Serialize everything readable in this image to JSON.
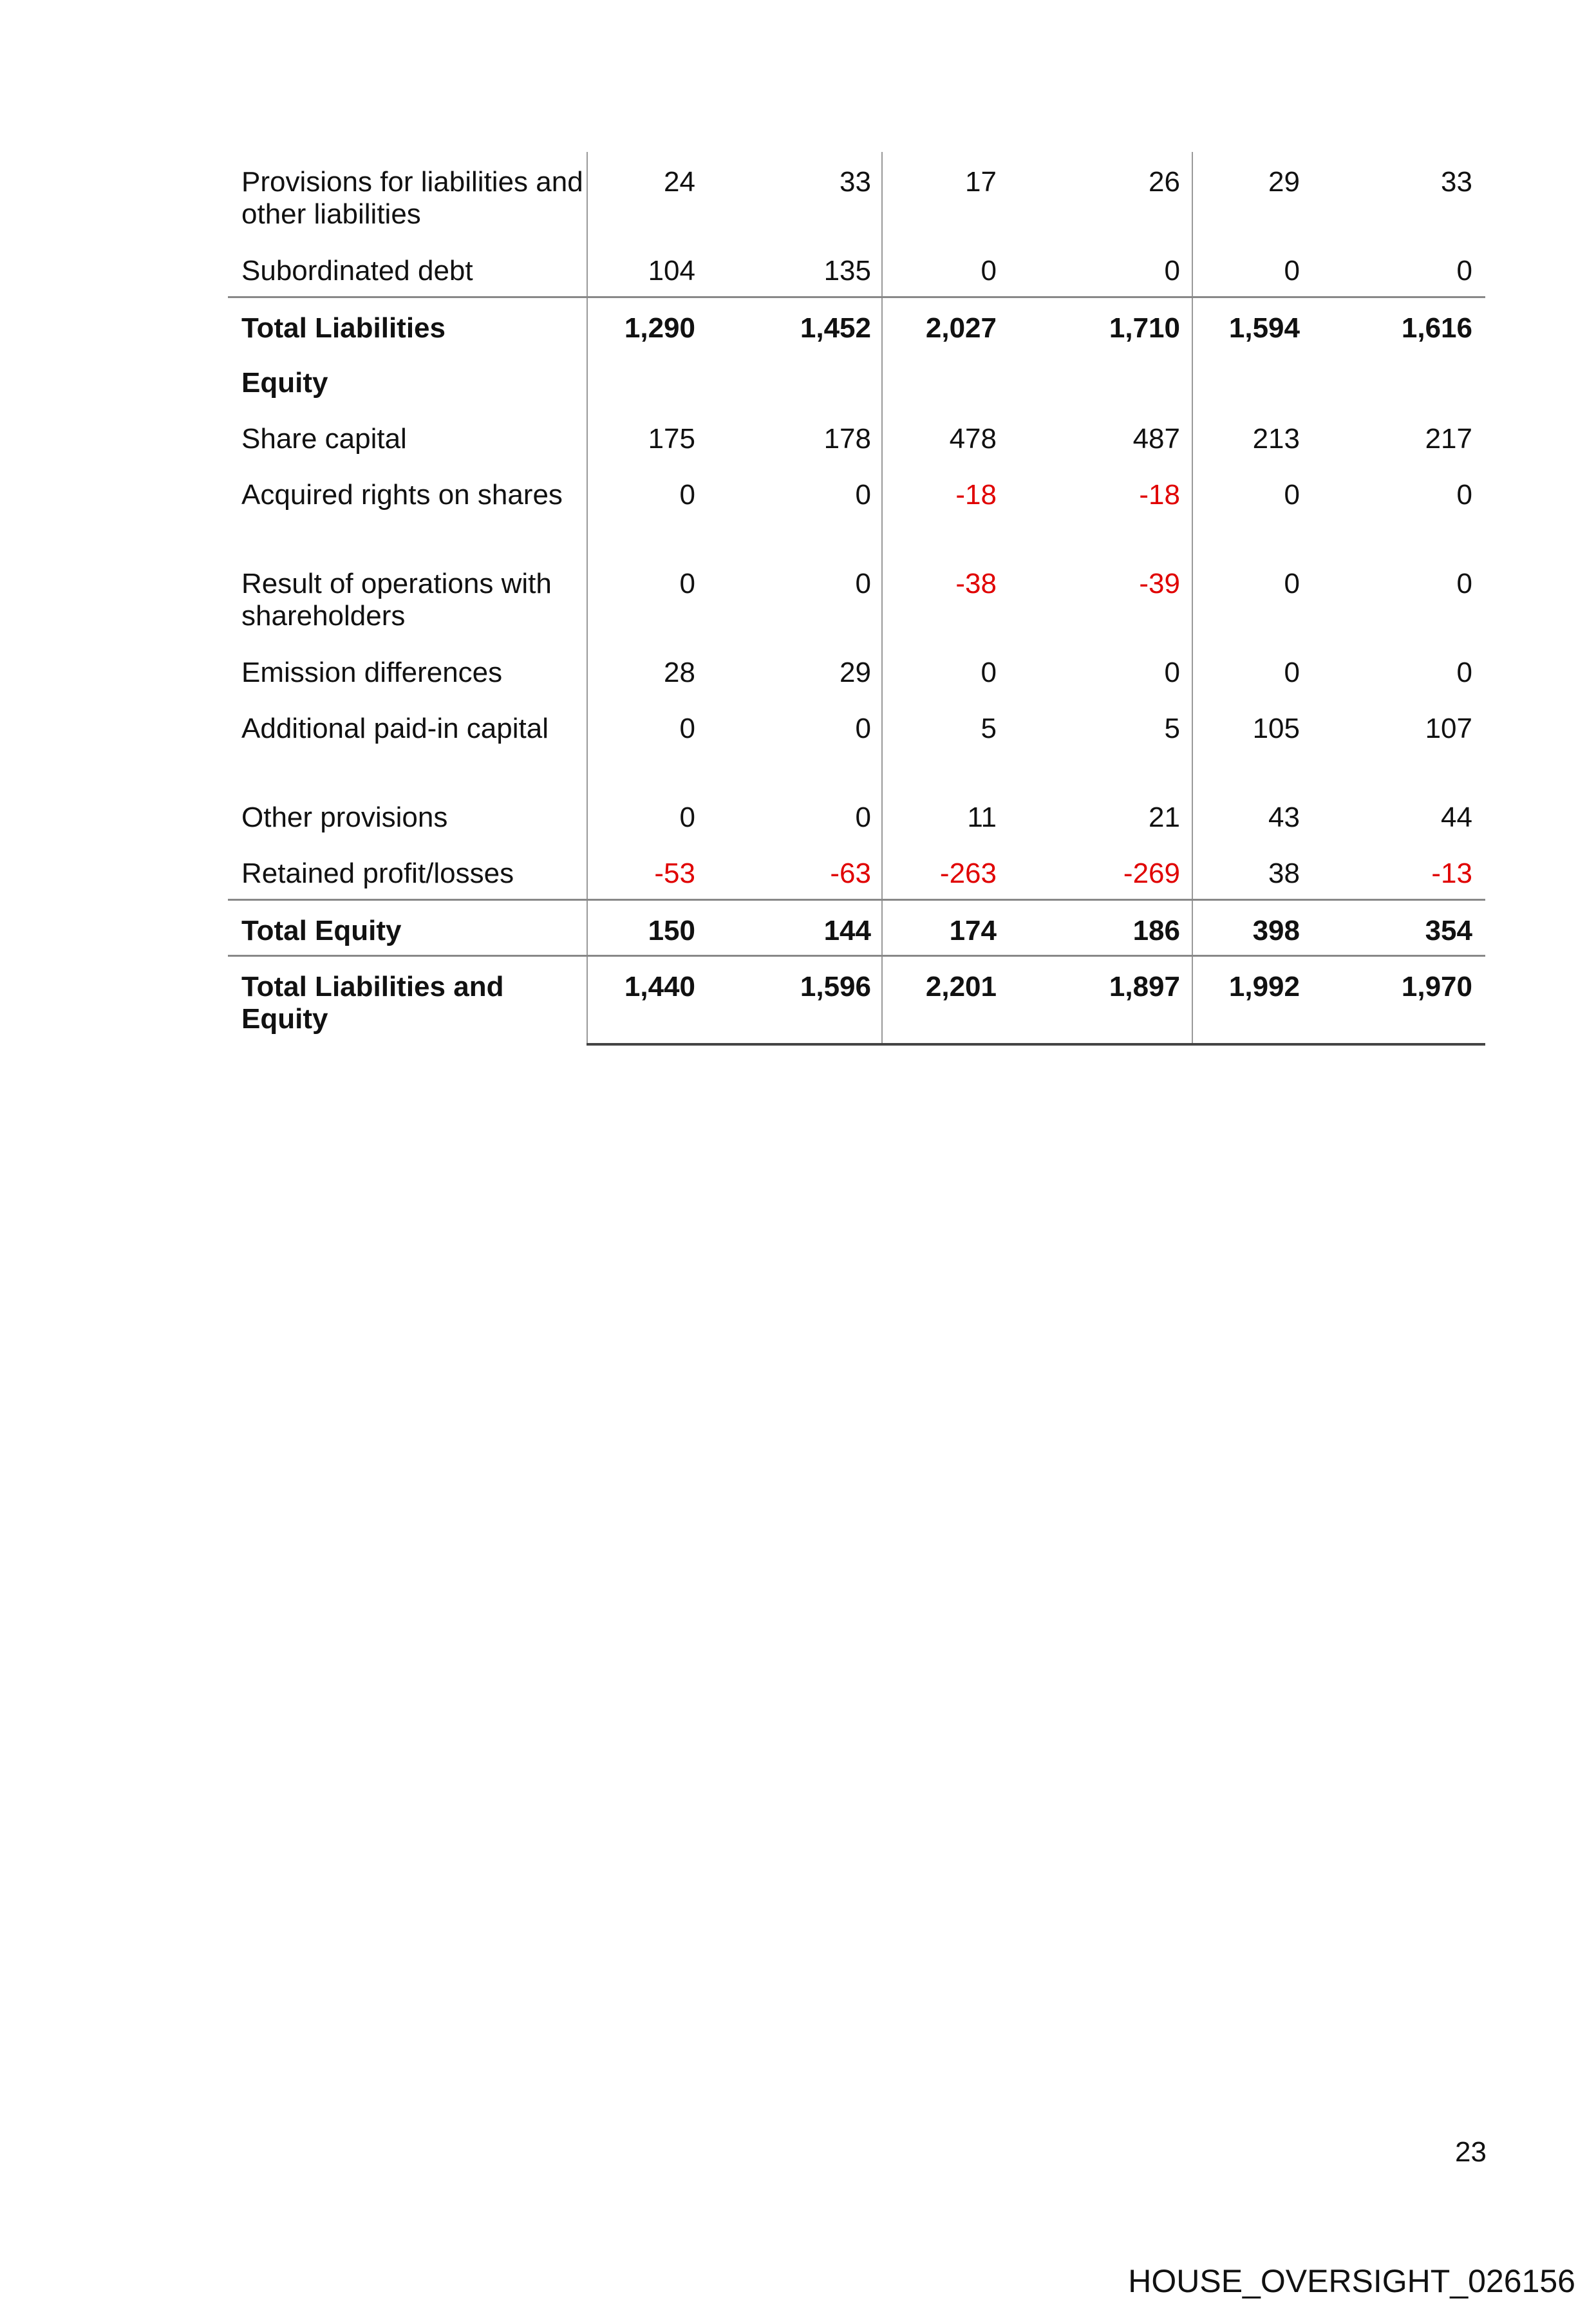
{
  "table": {
    "rows": [
      {
        "label": "Provisions for liabilities and other liabilities",
        "values": [
          "24",
          "33",
          "17",
          "26",
          "29",
          "33"
        ]
      },
      {
        "label": "Subordinated debt",
        "values": [
          "104",
          "135",
          "0",
          "0",
          "0",
          "0"
        ]
      },
      {
        "label": "Total Liabilities",
        "values": [
          "1,290",
          "1,452",
          "2,027",
          "1,710",
          "1,594",
          "1,616"
        ]
      },
      {
        "label": "Equity",
        "values": [
          "",
          "",
          "",
          "",
          "",
          ""
        ]
      },
      {
        "label": "Share capital",
        "values": [
          "175",
          "178",
          "478",
          "487",
          "213",
          "217"
        ]
      },
      {
        "label": "Acquired rights on shares",
        "values": [
          "0",
          "0",
          "-18",
          "-18",
          "0",
          "0"
        ]
      },
      {
        "label": "Result of operations with shareholders",
        "values": [
          "0",
          "0",
          "-38",
          "-39",
          "0",
          "0"
        ]
      },
      {
        "label": "Emission differences",
        "values": [
          "28",
          "29",
          "0",
          "0",
          "0",
          "0"
        ]
      },
      {
        "label": "Additional paid-in capital",
        "values": [
          "0",
          "0",
          "5",
          "5",
          "105",
          "107"
        ]
      },
      {
        "label": "Other provisions",
        "values": [
          "0",
          "0",
          "11",
          "21",
          "43",
          "44"
        ]
      },
      {
        "label": "Retained profit/losses",
        "values": [
          "-53",
          "-63",
          "-263",
          "-269",
          "38",
          "-13"
        ]
      },
      {
        "label": "Total Equity",
        "values": [
          "150",
          "144",
          "174",
          "186",
          "398",
          "354"
        ]
      },
      {
        "label": "Total Liabilities and Equity",
        "values": [
          "1,440",
          "1,596",
          "2,201",
          "1,897",
          "1,992",
          "1,970"
        ]
      }
    ],
    "negative_color": "#e00000"
  },
  "page_number": "23",
  "footer_id": "HOUSE_OVERSIGHT_026156"
}
